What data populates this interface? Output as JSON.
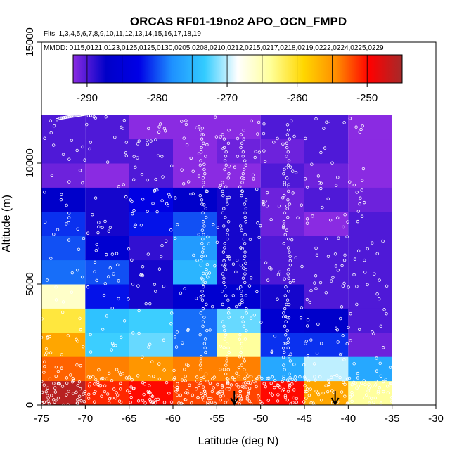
{
  "chart_data": {
    "type": "heatmap",
    "title": "ORCAS RF01-19no2 APO_OCN_FMPD",
    "flights_note": "Flts: 1,3,4,5,6,7,8,9,10,11,12,13,14,15,16,17,18,19",
    "dates_note": "MMDD: 0115,0121,0123,0125,0125,0130,0205,0208,0210,0212,0215,0217,0218,0219,0222,0224,0225,0229",
    "xlabel": "Latitude (deg N)",
    "ylabel": "Altitude (m)",
    "xlim": [
      -75,
      -30
    ],
    "ylim": [
      0,
      15000
    ],
    "x_ticks": [
      -75,
      -70,
      -65,
      -60,
      -55,
      -50,
      -45,
      -40,
      -35,
      -30
    ],
    "y_ticks": [
      0,
      5000,
      10000,
      15000
    ],
    "colorbar": {
      "range": [
        -292,
        -245
      ],
      "ticks": [
        -290,
        -280,
        -270,
        -260,
        -250
      ],
      "stops": [
        "#8a2be2",
        "#0000c8",
        "#0000e6",
        "#1e90ff",
        "#33ccff",
        "#ffffff",
        "#ffff99",
        "#ffd700",
        "#ff8c00",
        "#ff0000",
        "#a52a2a"
      ]
    },
    "lat_bins": [
      -75,
      -70,
      -65,
      -60,
      -55,
      -50,
      -45,
      -40,
      -35
    ],
    "alt_bin_size": 1000,
    "grid_values": [
      [
        -246,
        -251,
        -250,
        -252,
        -252,
        -250,
        -256,
        -264
      ],
      [
        -253,
        -254,
        -255,
        -254,
        -254,
        -276,
        -270,
        -276
      ],
      [
        -256,
        -273,
        -272,
        -279,
        -264,
        -281,
        -281,
        -291
      ],
      [
        -261,
        -274,
        -273,
        -279,
        -272,
        -286,
        -287,
        -290
      ],
      [
        -266,
        -282,
        -288,
        -286,
        -286,
        -288,
        -290,
        -290
      ],
      [
        -279,
        -280,
        -288,
        -275,
        -288,
        -290,
        -290,
        -290
      ],
      [
        -280,
        -286,
        -289,
        -277,
        -288,
        -290,
        -290,
        -290
      ],
      [
        -281,
        -288,
        -282,
        -280,
        -288,
        -291,
        -293,
        -290
      ],
      [
        -287,
        -288,
        -283,
        -287,
        -288,
        -291,
        -290,
        -291
      ],
      [
        -291,
        -292,
        -290,
        -292,
        -292,
        -290,
        -291,
        -294
      ],
      [
        -290,
        -290,
        -290,
        -292,
        -291,
        -291,
        -290,
        -294
      ],
      [
        -290,
        -290,
        -295,
        -292,
        -292,
        -290,
        -290,
        -293
      ]
    ],
    "arrows_at_lat": [
      -53,
      -41.5
    ],
    "sample_points": "white circles"
  }
}
